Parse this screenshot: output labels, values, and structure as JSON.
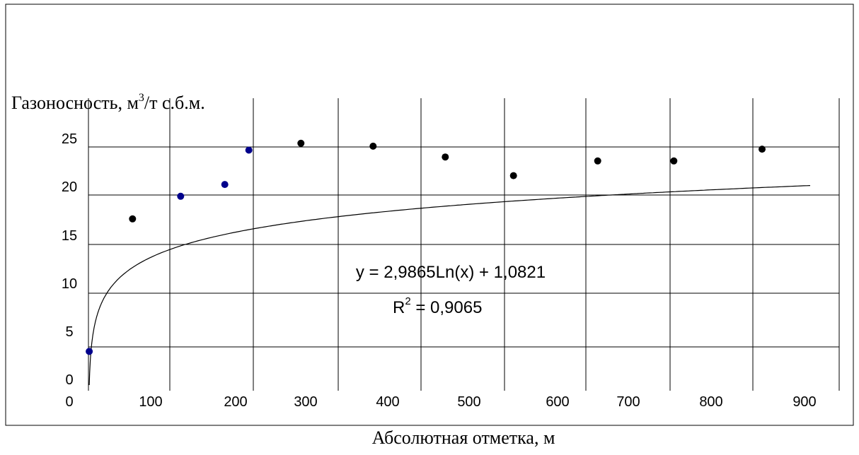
{
  "chart_data": {
    "type": "scatter",
    "ylabel": "Газоносность, м",
    "ylabel_sup": "3",
    "ylabel_tail": "/т с.б.м.",
    "xlabel": "Абсолютная отметка, м",
    "x_ticks": [
      "0",
      "100",
      "200",
      "300",
      "400",
      "500",
      "600",
      "700",
      "800",
      "900"
    ],
    "y_ticks": [
      "0",
      "5",
      "10",
      "15",
      "20",
      "25"
    ],
    "ylim": [
      0,
      30
    ],
    "grid": true,
    "series": [
      {
        "color": "#00008b",
        "points": [
          {
            "x": 1,
            "y": 4.5
          },
          {
            "x": 115,
            "y": 20.3
          },
          {
            "x": 170,
            "y": 21.5
          },
          {
            "x": 200,
            "y": 25
          }
        ]
      },
      {
        "color": "#000000",
        "points": [
          {
            "x": 55,
            "y": 18
          },
          {
            "x": 265,
            "y": 25.7
          },
          {
            "x": 355,
            "y": 25.4
          },
          {
            "x": 445,
            "y": 24.3
          },
          {
            "x": 530,
            "y": 22.4
          },
          {
            "x": 635,
            "y": 23.9
          },
          {
            "x": 730,
            "y": 23.9
          },
          {
            "x": 840,
            "y": 25.1
          }
        ]
      }
    ],
    "trendline": {
      "type": "logarithmic",
      "a": 2.9865,
      "b": 1.0821,
      "equation": "y = 2,9865Ln(x) + 1,0821",
      "r2_prefix": "R",
      "r2_sup": "2",
      "r2_value": " = 0,9065"
    }
  }
}
